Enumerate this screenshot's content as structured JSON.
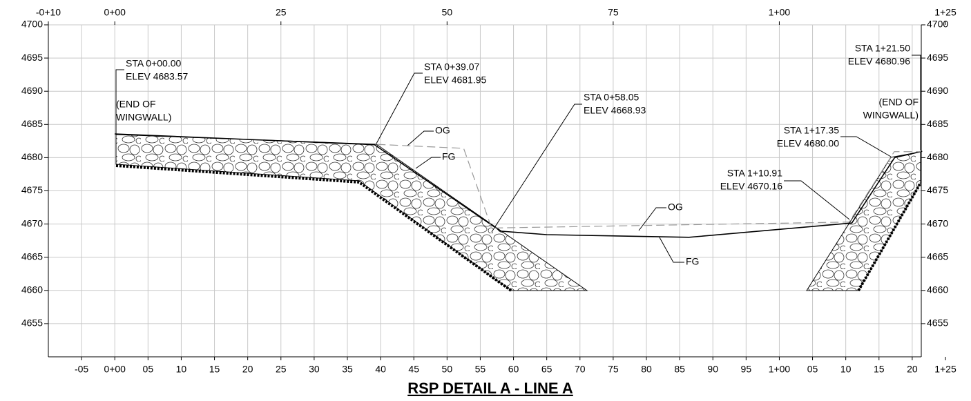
{
  "chart_data": {
    "type": "line",
    "title": "RSP DETAIL A - LINE A",
    "xlim": [
      -10,
      125
    ],
    "ylim": [
      4650,
      4700
    ],
    "xticks": [
      {
        "value": -5,
        "label": "-05"
      },
      {
        "value": 0,
        "label": "0+00"
      },
      {
        "value": 5,
        "label": "05"
      },
      10,
      15,
      20,
      25,
      30,
      35,
      40,
      45,
      50,
      55,
      60,
      65,
      70,
      75,
      80,
      85,
      90,
      95,
      {
        "value": 100,
        "label": "1+00"
      },
      {
        "value": 105,
        "label": "05"
      },
      {
        "value": 110,
        "label": "10"
      },
      {
        "value": 115,
        "label": "15"
      },
      {
        "value": 120,
        "label": "20"
      },
      {
        "value": 125,
        "label": "1+25"
      }
    ],
    "x2ticks": [
      {
        "value": -10,
        "label": "-0+10"
      },
      {
        "value": 0,
        "label": "0+00"
      },
      25,
      50,
      75,
      {
        "value": 100,
        "label": "1+00"
      },
      {
        "value": 125,
        "label": "1+25"
      }
    ],
    "yticks": [
      4655,
      4660,
      4665,
      4670,
      4675,
      4680,
      4685,
      4690,
      4695,
      4700
    ],
    "grid": true,
    "series": [
      {
        "name": "FG",
        "color": "#000000",
        "dashed": false,
        "x": [
          0,
          39.07,
          58.05,
          65,
          86.4,
          110.91,
          117.35,
          121.5
        ],
        "values": [
          4683.57,
          4681.95,
          4668.93,
          4668.4,
          4668.0,
          4670.16,
          4680.0,
          4680.96
        ]
      },
      {
        "name": "OG",
        "color": "#999999",
        "dashed": true,
        "x": [
          39.5,
          52.5,
          56.7,
          110.5,
          117.3,
          121.3
        ],
        "values": [
          4682.0,
          4681.4,
          4669.4,
          4670.3,
          4680.9,
          4680.9
        ]
      }
    ],
    "annotations": [
      {
        "lines": [
          "STA 0+00.00",
          "ELEV 4683.57"
        ]
      },
      {
        "lines": [
          "STA 0+39.07",
          "ELEV 4681.95"
        ]
      },
      {
        "lines": [
          "STA 0+58.05",
          "ELEV 4668.93"
        ]
      },
      {
        "lines": [
          "(END OF",
          "WINGWALL)"
        ]
      },
      {
        "lines": [
          "STA 1+21.50",
          "ELEV 4680.96"
        ]
      },
      {
        "lines": [
          "(END OF",
          "WINGWALL)"
        ]
      },
      {
        "lines": [
          "STA 1+17.35",
          "ELEV 4680.00"
        ]
      },
      {
        "lines": [
          "STA 1+10.91",
          "ELEV 4670.16"
        ]
      },
      {
        "lines": [
          "OG"
        ]
      },
      {
        "lines": [
          "FG"
        ]
      },
      {
        "lines": [
          "OG"
        ]
      },
      {
        "lines": [
          "FG"
        ]
      }
    ]
  }
}
